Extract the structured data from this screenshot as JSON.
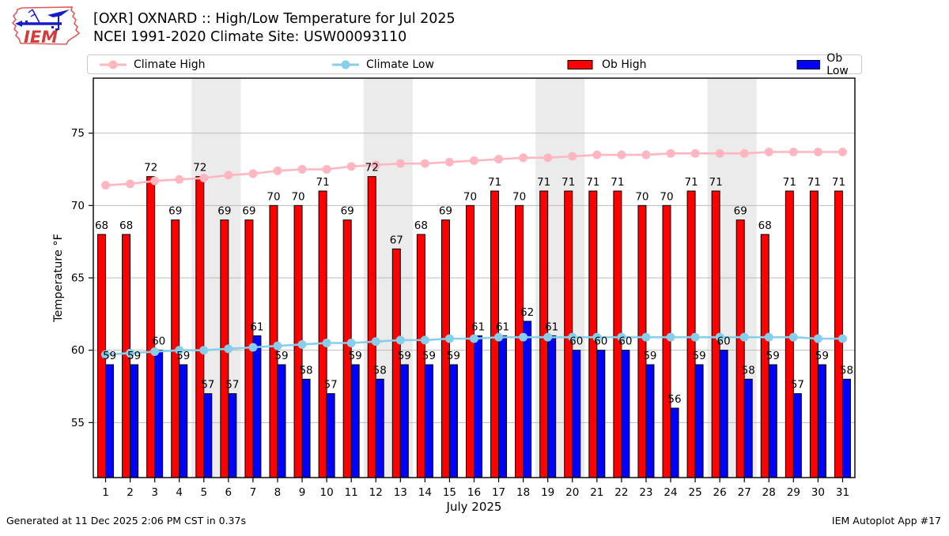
{
  "header": {
    "title_line1": "[OXR] OXNARD :: High/Low Temperature for Jul 2025",
    "title_line2": "NCEI 1991-2020 Climate Site: USW00093110"
  },
  "logo": {
    "text": "IEM"
  },
  "legend": {
    "items": [
      {
        "label": "Climate High",
        "swatch": "line",
        "color": "#FFB6C1"
      },
      {
        "label": "Climate Low",
        "swatch": "line",
        "color": "#87CEEB"
      },
      {
        "label": "Ob High",
        "swatch": "rect",
        "color": "#FF0000"
      },
      {
        "label": "Ob Low",
        "swatch": "rect",
        "color": "#0000FF"
      }
    ]
  },
  "chart_data": {
    "type": "bar",
    "x": [
      1,
      2,
      3,
      4,
      5,
      6,
      7,
      8,
      9,
      10,
      11,
      12,
      13,
      14,
      15,
      16,
      17,
      18,
      19,
      20,
      21,
      22,
      23,
      24,
      25,
      26,
      27,
      28,
      29,
      30,
      31
    ],
    "series": [
      {
        "name": "Climate High",
        "type": "line",
        "color": "#FFB6C1",
        "values": [
          71.4,
          71.5,
          71.7,
          71.8,
          71.9,
          72.1,
          72.2,
          72.4,
          72.5,
          72.5,
          72.7,
          72.8,
          72.9,
          72.9,
          73.0,
          73.1,
          73.2,
          73.3,
          73.3,
          73.4,
          73.5,
          73.5,
          73.5,
          73.6,
          73.6,
          73.6,
          73.6,
          73.7,
          73.7,
          73.7,
          73.7
        ]
      },
      {
        "name": "Climate Low",
        "type": "line",
        "color": "#87CEEB",
        "values": [
          59.7,
          59.8,
          59.9,
          60.0,
          60.0,
          60.1,
          60.2,
          60.3,
          60.4,
          60.5,
          60.5,
          60.6,
          60.7,
          60.7,
          60.8,
          60.8,
          60.9,
          60.9,
          60.9,
          60.9,
          60.9,
          60.9,
          60.9,
          60.9,
          60.9,
          60.9,
          60.9,
          60.9,
          60.9,
          60.8,
          60.8
        ]
      },
      {
        "name": "Ob High",
        "type": "bar",
        "color": "#FF0000",
        "labels": true,
        "values": [
          68,
          68,
          72,
          69,
          72,
          69,
          69,
          70,
          70,
          71,
          69,
          72,
          67,
          68,
          69,
          70,
          71,
          70,
          71,
          71,
          71,
          71,
          70,
          70,
          71,
          71,
          69,
          68,
          71,
          71,
          71
        ]
      },
      {
        "name": "Ob Low",
        "type": "bar",
        "color": "#0000FF",
        "labels": true,
        "values": [
          59,
          59,
          60,
          59,
          57,
          57,
          61,
          59,
          58,
          57,
          59,
          58,
          59,
          59,
          59,
          61,
          61,
          62,
          61,
          60,
          60,
          60,
          59,
          56,
          59,
          60,
          58,
          59,
          57,
          59,
          58
        ]
      }
    ],
    "xlabel": "July 2025",
    "ylabel": "Temperature °F",
    "ylim": [
      51.2,
      78.8
    ],
    "yticks": [
      55,
      60,
      65,
      70,
      75
    ],
    "grid": true,
    "grid_color": "#bbbbbb",
    "weekend_bands": [
      [
        5,
        6
      ],
      [
        12,
        13
      ],
      [
        19,
        20
      ],
      [
        26,
        27
      ]
    ],
    "band_color": "#ebebeb",
    "legend_position": "top"
  },
  "footer": {
    "left": "Generated at 11 Dec 2025 2:06 PM CST in 0.37s",
    "right": "IEM Autoplot App #17"
  }
}
